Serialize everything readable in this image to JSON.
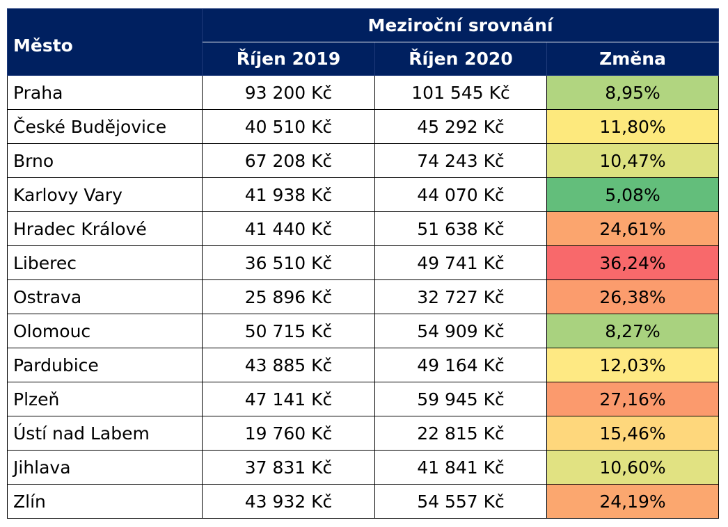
{
  "header": {
    "city_label": "Město",
    "group_label": "Meziroční srovnání",
    "col_2019": "Říjen 2019",
    "col_2020": "Říjen 2020",
    "col_change": "Změna"
  },
  "rows": [
    {
      "city": "Praha",
      "v2019": "93 200 Kč",
      "v2020": "101 545 Kč",
      "change": "8,95%",
      "color": "#b1d580"
    },
    {
      "city": "České Budějovice",
      "v2019": "40 510 Kč",
      "v2020": "45 292 Kč",
      "change": "11,80%",
      "color": "#fde97d"
    },
    {
      "city": "Brno",
      "v2019": "67 208 Kč",
      "v2020": "74 243 Kč",
      "change": "10,47%",
      "color": "#dde280"
    },
    {
      "city": "Karlovy Vary",
      "v2019": "41 938 Kč",
      "v2020": "44 070 Kč",
      "change": "5,08%",
      "color": "#63be7b"
    },
    {
      "city": "Hradec Králové",
      "v2019": "41 440 Kč",
      "v2020": "51 638 Kč",
      "change": "24,61%",
      "color": "#fba56e"
    },
    {
      "city": "Liberec",
      "v2019": "36 510 Kč",
      "v2020": "49 741 Kč",
      "change": "36,24%",
      "color": "#f8696b"
    },
    {
      "city": "Ostrava",
      "v2019": "25 896 Kč",
      "v2020": "32 727 Kč",
      "change": "26,38%",
      "color": "#fb9c6d"
    },
    {
      "city": "Olomouc",
      "v2019": "50 715 Kč",
      "v2020": "54 909 Kč",
      "change": "8,27%",
      "color": "#a9d27f"
    },
    {
      "city": "Pardubice",
      "v2019": "43 885 Kč",
      "v2020": "49 164 Kč",
      "change": "12,03%",
      "color": "#fee983"
    },
    {
      "city": "Plzeň",
      "v2019": "47 141 Kč",
      "v2020": "59 945 Kč",
      "change": "27,16%",
      "color": "#fb9a6d"
    },
    {
      "city": "Ústí nad Labem",
      "v2019": "19 760 Kč",
      "v2020": "22 815 Kč",
      "change": "15,46%",
      "color": "#fed77c"
    },
    {
      "city": "Jihlava",
      "v2019": "37 831 Kč",
      "v2020": "41 841 Kč",
      "change": "10,60%",
      "color": "#e1e282"
    },
    {
      "city": "Zlín",
      "v2019": "43 932 Kč",
      "v2020": "54 557 Kč",
      "change": "24,19%",
      "color": "#fba76f"
    }
  ]
}
